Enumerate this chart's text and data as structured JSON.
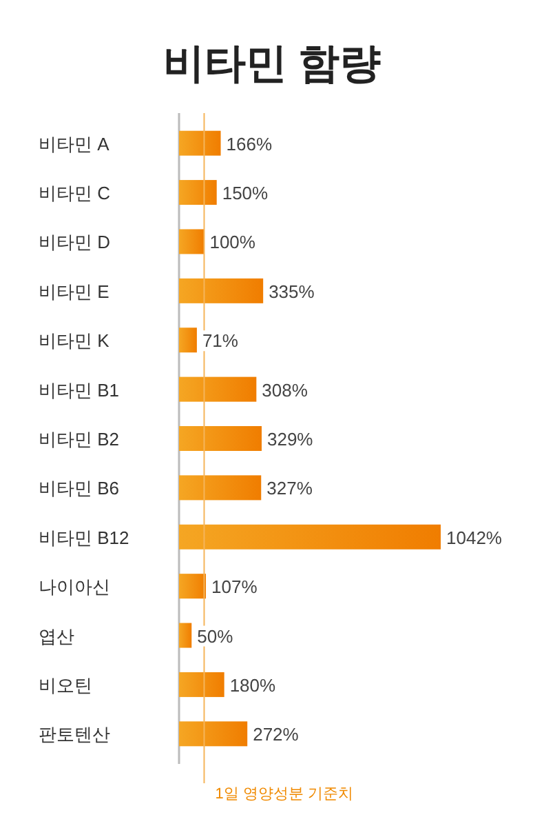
{
  "chart_data": {
    "type": "bar",
    "orientation": "horizontal",
    "title": "비타민 함량",
    "categories": [
      "비타민 A",
      "비타민 C",
      "비타민 D",
      "비타민 E",
      "비타민 K",
      "비타민 B1",
      "비타민 B2",
      "비타민 B6",
      "비타민 B12",
      "나이아신",
      "엽산",
      "비오틴",
      "판토텐산"
    ],
    "values": [
      166,
      150,
      100,
      335,
      71,
      308,
      329,
      327,
      1042,
      107,
      50,
      180,
      272
    ],
    "value_labels": [
      "166%",
      "150%",
      "100%",
      "335%",
      "71%",
      "308%",
      "329%",
      "327%",
      "1042%",
      "107%",
      "50%",
      "180%",
      "272%"
    ],
    "color": "#f07d00",
    "tick_labels": "y",
    "ref_lines": [
      {
        "axis": "x",
        "value": 100,
        "label": "1일 영양성분 기준치",
        "color": "#f5b55a"
      }
    ]
  }
}
